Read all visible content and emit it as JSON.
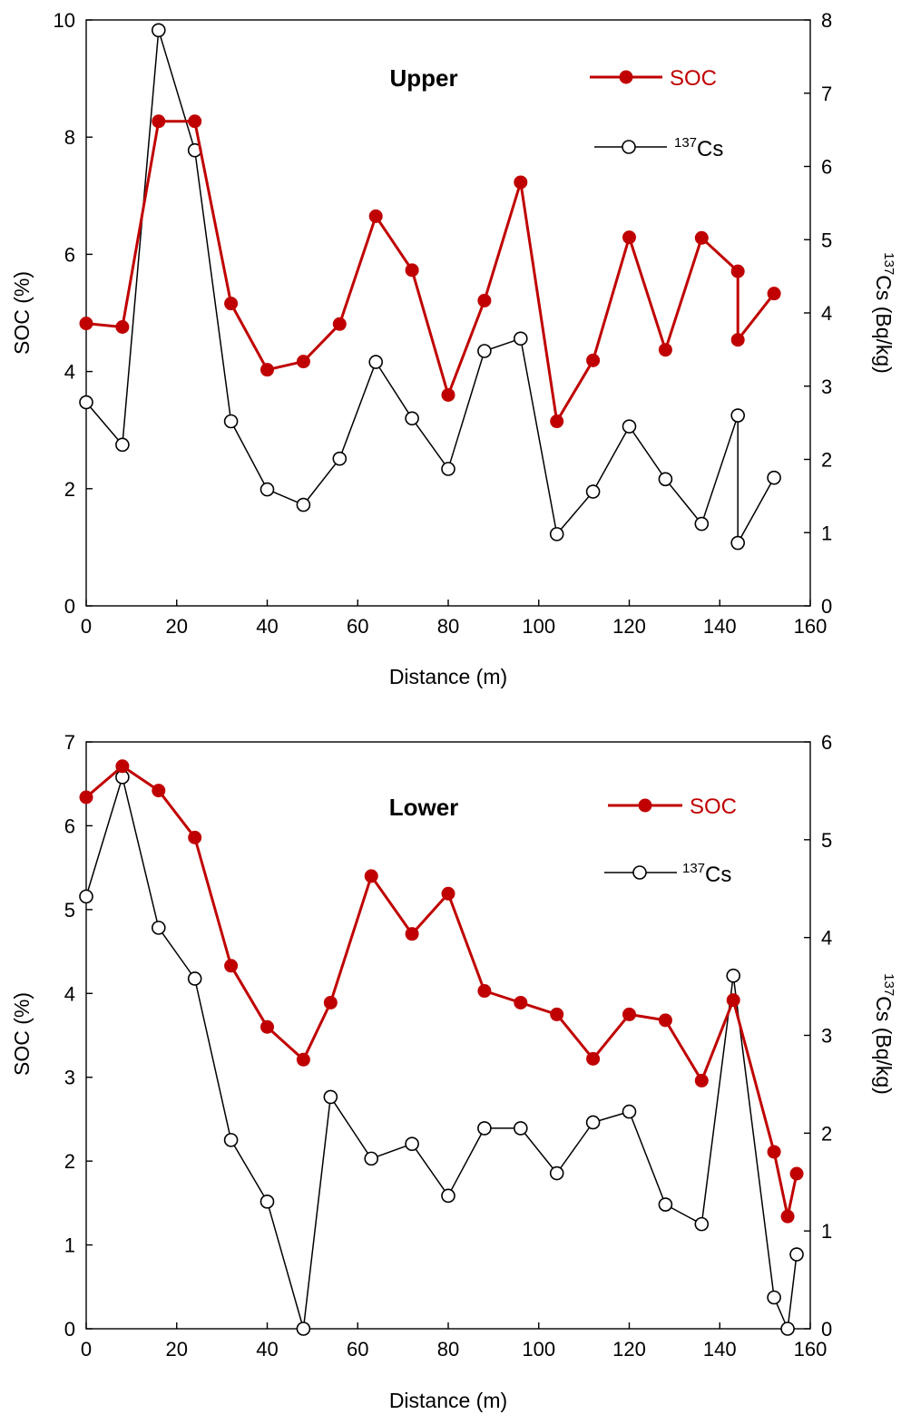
{
  "colors": {
    "soc": "#c00000",
    "cs": "#000000",
    "axis": "#000000"
  },
  "chart_data": [
    {
      "type": "line",
      "title": "Upper",
      "xlabel": "Distance (m)",
      "ylabel_left": "SOC (%)",
      "ylabel_right_sup": "137",
      "ylabel_right_main": "Cs (Bq/kg)",
      "xlim": [
        0,
        160
      ],
      "xticks": [
        0,
        20,
        40,
        60,
        80,
        100,
        120,
        140,
        160
      ],
      "ylim_left": [
        0,
        10
      ],
      "yticks_left": [
        0,
        2,
        4,
        6,
        8,
        10
      ],
      "ylim_right": [
        0,
        8
      ],
      "yticks_right": [
        0,
        1,
        2,
        3,
        4,
        5,
        6,
        7,
        8
      ],
      "legend": {
        "soc_label": "SOC",
        "cs_sup": "137",
        "cs_main": "Cs"
      },
      "series": [
        {
          "name": "SOC",
          "axis": "left",
          "x": [
            0,
            8,
            16,
            24,
            32,
            40,
            48,
            56,
            64,
            72,
            80,
            88,
            96,
            104,
            112,
            120,
            128,
            136,
            144,
            144,
            152
          ],
          "y": [
            4.82,
            4.76,
            8.27,
            8.27,
            5.16,
            4.03,
            4.17,
            4.81,
            6.65,
            5.73,
            3.6,
            5.21,
            7.23,
            3.15,
            4.19,
            6.29,
            4.37,
            6.28,
            5.71,
            4.54,
            5.33
          ]
        },
        {
          "name": "137Cs",
          "axis": "right",
          "x": [
            0,
            8,
            16,
            24,
            32,
            40,
            48,
            56,
            64,
            72,
            80,
            88,
            96,
            104,
            112,
            120,
            128,
            136,
            144,
            144,
            152
          ],
          "y": [
            2.78,
            2.2,
            7.86,
            6.22,
            2.52,
            1.59,
            1.38,
            2.01,
            3.33,
            2.56,
            1.87,
            3.48,
            3.65,
            0.98,
            1.56,
            2.45,
            1.73,
            1.12,
            2.6,
            0.86,
            1.75
          ]
        }
      ]
    },
    {
      "type": "line",
      "title": "Lower",
      "xlabel": "Distance (m)",
      "ylabel_left": "SOC (%)",
      "ylabel_right_sup": "137",
      "ylabel_right_main": "Cs (Bq/kg)",
      "xlim": [
        0,
        160
      ],
      "xticks": [
        0,
        20,
        40,
        60,
        80,
        100,
        120,
        140,
        160
      ],
      "ylim_left": [
        0,
        7
      ],
      "yticks_left": [
        0,
        1,
        2,
        3,
        4,
        5,
        6,
        7
      ],
      "ylim_right": [
        0,
        6
      ],
      "yticks_right": [
        0,
        1,
        2,
        3,
        4,
        5,
        6
      ],
      "legend": {
        "soc_label": "SOC",
        "cs_sup": "137",
        "cs_main": "Cs"
      },
      "series": [
        {
          "name": "SOC",
          "axis": "left",
          "x": [
            0,
            8,
            16,
            24,
            32,
            40,
            48,
            54,
            63,
            72,
            80,
            88,
            96,
            104,
            112,
            120,
            128,
            136,
            143,
            152,
            155,
            157
          ],
          "y": [
            6.34,
            6.71,
            6.42,
            5.86,
            4.33,
            3.6,
            3.21,
            3.89,
            5.4,
            4.71,
            5.19,
            4.03,
            3.89,
            3.75,
            3.22,
            3.75,
            3.68,
            2.96,
            3.92,
            2.11,
            1.34,
            1.85
          ]
        },
        {
          "name": "137Cs",
          "axis": "right",
          "x": [
            0,
            8,
            16,
            24,
            32,
            40,
            48,
            54,
            63,
            72,
            80,
            88,
            96,
            104,
            112,
            120,
            128,
            136,
            143,
            152,
            155,
            157
          ],
          "y": [
            4.42,
            5.64,
            4.1,
            3.58,
            1.93,
            1.3,
            0.0,
            2.37,
            1.74,
            1.89,
            1.36,
            2.05,
            2.05,
            1.59,
            2.11,
            2.22,
            1.27,
            1.07,
            3.61,
            0.32,
            0.0,
            0.76
          ]
        }
      ]
    }
  ]
}
